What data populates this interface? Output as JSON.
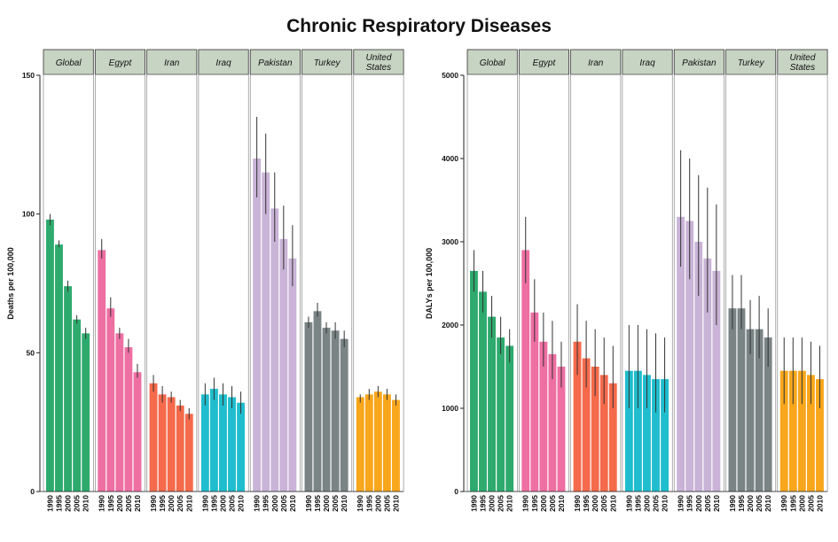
{
  "title": "Chronic Respiratory Diseases",
  "chart_data": [
    {
      "type": "bar",
      "id": "deaths",
      "ylabel": "Deaths per 100,000",
      "ylim": [
        0,
        150
      ],
      "yticks": [
        0,
        50,
        100,
        150
      ],
      "categories": [
        "1990",
        "1995",
        "2000",
        "2005",
        "2010"
      ],
      "panels": [
        {
          "name": "Global",
          "color": "#2eaa6e",
          "values": [
            98,
            89,
            74,
            62,
            57
          ],
          "lower": [
            96,
            88,
            72,
            60.5,
            55
          ],
          "upper": [
            100,
            90.5,
            76,
            63.5,
            59
          ]
        },
        {
          "name": "Egypt",
          "color": "#ee6fa2",
          "values": [
            87,
            66,
            57,
            52,
            43
          ],
          "lower": [
            84,
            63,
            55,
            50,
            41
          ],
          "upper": [
            91,
            70,
            59,
            55,
            46
          ]
        },
        {
          "name": "Iran",
          "color": "#f46a4b",
          "values": [
            39,
            35,
            34,
            31,
            28
          ],
          "lower": [
            36,
            32,
            32,
            29,
            26
          ],
          "upper": [
            42,
            38,
            36,
            33,
            30
          ]
        },
        {
          "name": "Iraq",
          "color": "#1fbdcd",
          "values": [
            35,
            37,
            35,
            34,
            32
          ],
          "lower": [
            31,
            33,
            31,
            30,
            28
          ],
          "upper": [
            39,
            41,
            39,
            38,
            36
          ]
        },
        {
          "name": "Pakistan",
          "color": "#c9b3d7",
          "values": [
            120,
            115,
            102,
            91,
            84
          ],
          "lower": [
            106,
            100,
            90,
            80,
            74
          ],
          "upper": [
            135,
            129,
            115,
            103,
            96
          ]
        },
        {
          "name": "Turkey",
          "color": "#7a8484",
          "values": [
            61,
            65,
            59,
            58,
            55
          ],
          "lower": [
            59,
            63,
            57,
            55,
            52
          ],
          "upper": [
            63,
            68,
            61,
            61,
            58
          ]
        },
        {
          "name": "United States",
          "color": "#f8a61c",
          "values": [
            34,
            35,
            36,
            35,
            33
          ],
          "lower": [
            32,
            33,
            34,
            33,
            31
          ],
          "upper": [
            35,
            37,
            38,
            37,
            35
          ]
        }
      ]
    },
    {
      "type": "bar",
      "id": "dalys",
      "ylabel": "DALYs per 100,000",
      "ylim": [
        0,
        5000
      ],
      "yticks": [
        0,
        1000,
        2000,
        3000,
        4000,
        5000
      ],
      "categories": [
        "1990",
        "1995",
        "2000",
        "2005",
        "2010"
      ],
      "panels": [
        {
          "name": "Global",
          "color": "#2eaa6e",
          "values": [
            2650,
            2400,
            2100,
            1850,
            1750
          ],
          "lower": [
            2400,
            2150,
            1850,
            1650,
            1550
          ],
          "upper": [
            2900,
            2650,
            2350,
            2100,
            1950
          ]
        },
        {
          "name": "Egypt",
          "color": "#ee6fa2",
          "values": [
            2900,
            2150,
            1800,
            1650,
            1500
          ],
          "lower": [
            2500,
            1800,
            1500,
            1350,
            1250
          ],
          "upper": [
            3300,
            2550,
            2150,
            2050,
            1800
          ]
        },
        {
          "name": "Iran",
          "color": "#f46a4b",
          "values": [
            1800,
            1600,
            1500,
            1400,
            1300
          ],
          "lower": [
            1400,
            1250,
            1150,
            1050,
            1000
          ],
          "upper": [
            2250,
            2050,
            1950,
            1850,
            1750
          ]
        },
        {
          "name": "Iraq",
          "color": "#1fbdcd",
          "values": [
            1450,
            1450,
            1400,
            1350,
            1350
          ],
          "lower": [
            1000,
            1000,
            1000,
            950,
            950
          ],
          "upper": [
            2000,
            2000,
            1950,
            1900,
            1850
          ]
        },
        {
          "name": "Pakistan",
          "color": "#c9b3d7",
          "values": [
            3300,
            3250,
            3000,
            2800,
            2650
          ],
          "lower": [
            2700,
            2550,
            2350,
            2150,
            2000
          ],
          "upper": [
            4100,
            4000,
            3800,
            3650,
            3450
          ]
        },
        {
          "name": "Turkey",
          "color": "#7a8484",
          "values": [
            2200,
            2200,
            1950,
            1950,
            1850
          ],
          "lower": [
            1950,
            1950,
            1650,
            1600,
            1500
          ],
          "upper": [
            2600,
            2600,
            2300,
            2350,
            2200
          ]
        },
        {
          "name": "United States",
          "color": "#f8a61c",
          "values": [
            1450,
            1450,
            1450,
            1400,
            1350
          ],
          "lower": [
            1050,
            1050,
            1050,
            1050,
            1000
          ],
          "upper": [
            1850,
            1850,
            1850,
            1800,
            1750
          ]
        }
      ]
    }
  ]
}
